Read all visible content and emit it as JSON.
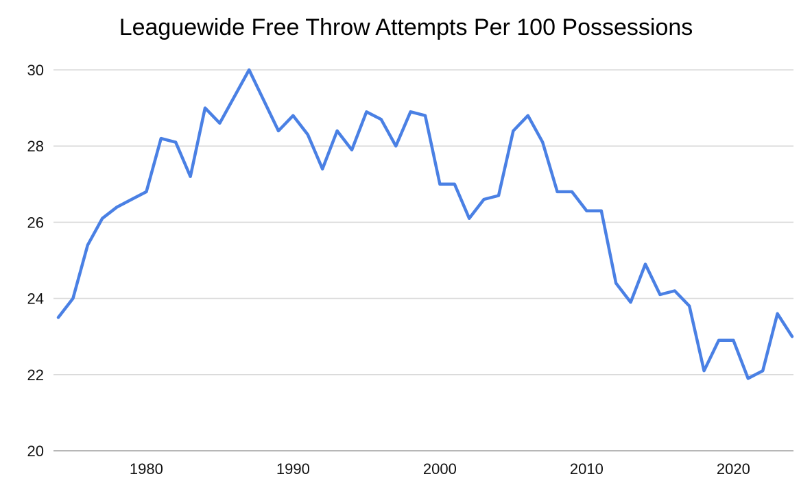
{
  "page": {
    "background_color": "#ffffff"
  },
  "chart_data": {
    "type": "line",
    "title": "Leaguewide Free Throw Attempts Per 100 Possessions",
    "xlabel": "",
    "ylabel": "",
    "x": [
      1974,
      1975,
      1976,
      1977,
      1978,
      1979,
      1980,
      1981,
      1982,
      1983,
      1984,
      1985,
      1986,
      1987,
      1988,
      1989,
      1990,
      1991,
      1992,
      1993,
      1994,
      1995,
      1996,
      1997,
      1998,
      1999,
      2000,
      2001,
      2002,
      2003,
      2004,
      2005,
      2006,
      2007,
      2008,
      2009,
      2010,
      2011,
      2012,
      2013,
      2014,
      2015,
      2016,
      2017,
      2018,
      2019,
      2020,
      2021,
      2022,
      2023,
      2024
    ],
    "series": [
      {
        "name": "Free throw attempts per 100 possessions",
        "values": [
          23.5,
          24.0,
          25.4,
          26.1,
          26.4,
          26.6,
          26.8,
          28.2,
          28.1,
          27.2,
          29.0,
          28.6,
          29.3,
          30.0,
          29.2,
          28.4,
          28.8,
          28.3,
          27.4,
          28.4,
          27.9,
          28.9,
          28.7,
          28.0,
          28.9,
          28.8,
          27.0,
          27.0,
          26.1,
          26.6,
          26.7,
          28.4,
          28.8,
          28.1,
          26.8,
          26.8,
          26.3,
          26.3,
          24.4,
          23.9,
          24.9,
          24.1,
          24.2,
          23.8,
          22.1,
          22.9,
          22.9,
          21.9,
          22.1,
          23.6,
          23.0
        ]
      }
    ],
    "xlim": [
      1974,
      2024
    ],
    "ylim": [
      20,
      30
    ],
    "x_ticks": [
      1980,
      1990,
      2000,
      2010,
      2020
    ],
    "y_ticks": [
      20,
      22,
      24,
      26,
      28,
      30
    ],
    "grid": true,
    "legend": "none",
    "line_color": "#4a80e4",
    "gridline_color": "#d9d9d9",
    "axis_line_color": "#b7b7b7",
    "tick_label_color": "#111111",
    "title_color": "#000000"
  }
}
